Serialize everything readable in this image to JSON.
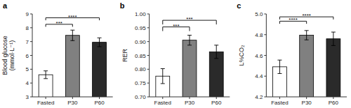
{
  "chart_data": [
    {
      "type": "bar",
      "title": "a",
      "ylabel": "Blood glucose\n(mmol·L⁻¹)",
      "categories": [
        "Fasted",
        "P30",
        "P60"
      ],
      "values": [
        4.6,
        7.45,
        6.95
      ],
      "errors": [
        0.28,
        0.38,
        0.32
      ],
      "colors": [
        "white",
        "#808080",
        "#2a2a2a"
      ],
      "ylim": [
        3.0,
        9.0
      ],
      "yticks": [
        3,
        4,
        5,
        6,
        7,
        8,
        9
      ],
      "annotations": [
        {
          "from": "Fasted",
          "to": "P30",
          "y": 8.25,
          "drop": 0.18,
          "label": "***"
        },
        {
          "from": "Fasted",
          "to": "P60",
          "y": 8.72,
          "drop": 0.18,
          "label": "****"
        }
      ]
    },
    {
      "type": "bar",
      "title": "b",
      "ylabel": "RER",
      "categories": [
        "Fasted",
        "P30",
        "P60"
      ],
      "values": [
        0.775,
        0.905,
        0.863
      ],
      "errors": [
        0.027,
        0.018,
        0.024
      ],
      "colors": [
        "white",
        "#808080",
        "#2a2a2a"
      ],
      "ylim": [
        0.7,
        1.0
      ],
      "yticks": [
        {
          "value": 0.7,
          "label": "0.70"
        },
        0.75,
        {
          "value": 0.8,
          "label": "0.80"
        },
        0.85,
        {
          "value": 0.9,
          "label": "0.90"
        },
        0.95,
        {
          "value": 1.0,
          "label": "1.00"
        }
      ],
      "annotations": [
        {
          "from": "Fasted",
          "to": "P30",
          "y": 0.953,
          "drop": 0.015,
          "label": "***"
        },
        {
          "from": "Fasted",
          "to": "P60",
          "y": 0.977,
          "drop": 0.015,
          "label": "***"
        }
      ]
    },
    {
      "type": "bar",
      "title": "c",
      "ylabel": "L%CO₂",
      "categories": [
        "Fasted",
        "P30",
        "P60"
      ],
      "values": [
        4.49,
        4.795,
        4.76
      ],
      "errors": [
        0.065,
        0.045,
        0.065
      ],
      "colors": [
        "white",
        "#808080",
        "#2a2a2a"
      ],
      "ylim": [
        4.2,
        5.0
      ],
      "yticks": [
        4.2,
        4.4,
        4.6,
        4.8,
        {
          "value": 5.0,
          "label": "5.0"
        }
      ],
      "annotations": [
        {
          "from": "Fasted",
          "to": "P30",
          "y": 4.93,
          "drop": 0.025,
          "label": "****"
        },
        {
          "from": "Fasted",
          "to": "P60",
          "y": 4.972,
          "drop": 0.025,
          "label": "****"
        }
      ]
    }
  ]
}
